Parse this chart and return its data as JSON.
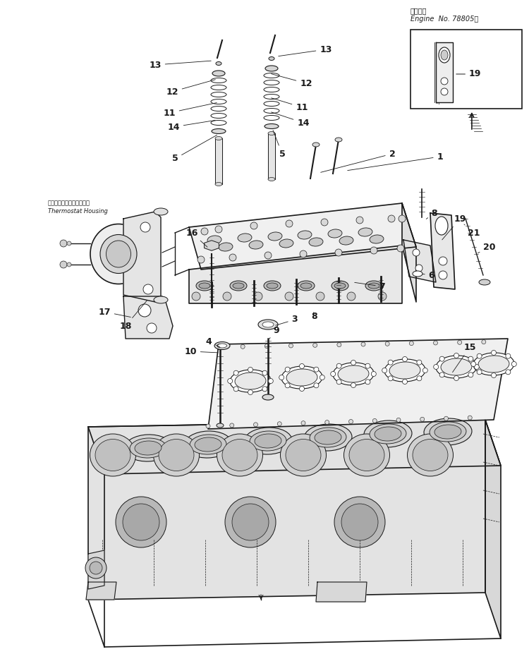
{
  "bg_color": "#ffffff",
  "line_color": "#1a1a1a",
  "fig_width": 7.5,
  "fig_height": 9.44,
  "dpi": 100,
  "inset_header_ja": "適用号籠",
  "inset_header_en": "Engine  No. 78805〜",
  "thermostat_label_ja": "サーモスタットハウジング",
  "thermostat_label_en": "Thermostat Housing"
}
